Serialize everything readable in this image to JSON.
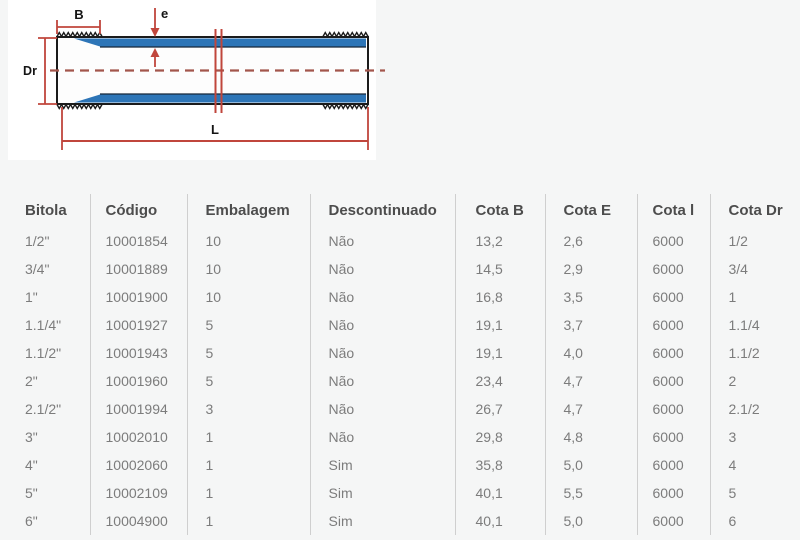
{
  "page": {
    "background": "#f5f6f6"
  },
  "diagram": {
    "labels": {
      "thread_length": "B",
      "wall_thickness": "e",
      "diameter": "Dr",
      "total_length": "L"
    },
    "colors": {
      "pipe_blue": "#2d75b7",
      "dimension_red": "#c0463c",
      "centerline_red": "#a3564c",
      "outline_black": "#1b1b1b",
      "box_background": "#ffffff"
    }
  },
  "table": {
    "columns": [
      {
        "key": "bitola",
        "label": "Bitola"
      },
      {
        "key": "codigo",
        "label": "Código"
      },
      {
        "key": "embalagem",
        "label": "Embalagem"
      },
      {
        "key": "descontinuado",
        "label": "Descontinuado"
      },
      {
        "key": "cota_b",
        "label": "Cota B"
      },
      {
        "key": "cota_e",
        "label": "Cota E"
      },
      {
        "key": "cota_l",
        "label": "Cota l"
      },
      {
        "key": "cota_dr",
        "label": "Cota Dr"
      }
    ],
    "rows": [
      [
        "1/2\"",
        "10001854",
        "10",
        "Não",
        "13,2",
        "2,6",
        "6000",
        "1/2"
      ],
      [
        "3/4\"",
        "10001889",
        "10",
        "Não",
        "14,5",
        "2,9",
        "6000",
        "3/4"
      ],
      [
        "1\"",
        "10001900",
        "10",
        "Não",
        "16,8",
        "3,5",
        "6000",
        "1"
      ],
      [
        "1.1/4\"",
        "10001927",
        "5",
        "Não",
        "19,1",
        "3,7",
        "6000",
        "1.1/4"
      ],
      [
        "1.1/2\"",
        "10001943",
        "5",
        "Não",
        "19,1",
        "4,0",
        "6000",
        "1.1/2"
      ],
      [
        "2\"",
        "10001960",
        "5",
        "Não",
        "23,4",
        "4,7",
        "6000",
        "2"
      ],
      [
        "2.1/2\"",
        "10001994",
        "3",
        "Não",
        "26,7",
        "4,7",
        "6000",
        "2.1/2"
      ],
      [
        "3\"",
        "10002010",
        "1",
        "Não",
        "29,8",
        "4,8",
        "6000",
        "3"
      ],
      [
        "4\"",
        "10002060",
        "1",
        "Sim",
        "35,8",
        "5,0",
        "6000",
        "4"
      ],
      [
        "5\"",
        "10002109",
        "1",
        "Sim",
        "40,1",
        "5,5",
        "6000",
        "5"
      ],
      [
        "6\"",
        "10004900",
        "1",
        "Sim",
        "40,1",
        "5,0",
        "6000",
        "6"
      ]
    ]
  }
}
